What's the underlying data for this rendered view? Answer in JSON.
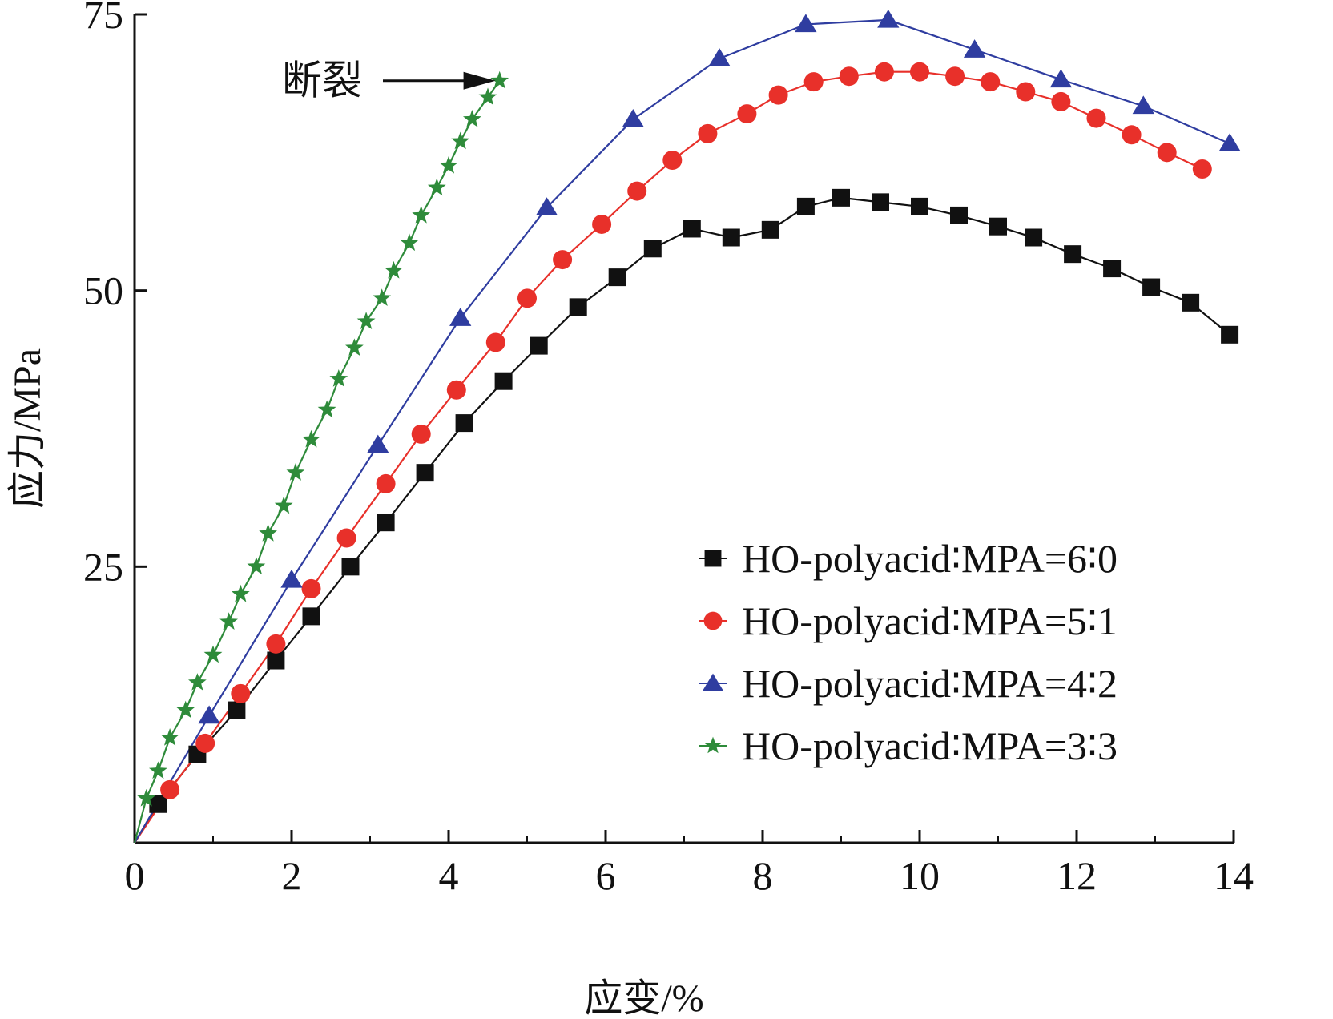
{
  "chart_data": {
    "type": "line",
    "title": "",
    "xlabel": "应变/%",
    "ylabel": "应力/MPa",
    "xlim": [
      0,
      14
    ],
    "ylim": [
      0,
      75
    ],
    "xticks": [
      0,
      2,
      4,
      6,
      8,
      10,
      12,
      14
    ],
    "yticks": [
      25,
      50,
      75
    ],
    "grid": false,
    "legend_position": "bottom-right",
    "annotation": {
      "text": "断裂",
      "points_to": {
        "x": 4.7,
        "y": 69
      }
    },
    "series": [
      {
        "name": "HO-polyacid∶MPA=6∶0",
        "marker": "square",
        "color": "#111111",
        "x": [
          0.3,
          0.8,
          1.3,
          1.8,
          2.25,
          2.75,
          3.2,
          3.7,
          4.2,
          4.7,
          5.15,
          5.65,
          6.15,
          6.6,
          7.1,
          7.6,
          8.1,
          8.55,
          9.0,
          9.5,
          10.0,
          10.5,
          11.0,
          11.45,
          11.95,
          12.45,
          12.95,
          13.45,
          13.95
        ],
        "y": [
          3.5,
          8,
          12,
          16.5,
          20.5,
          25,
          29,
          33.5,
          38,
          41.8,
          45,
          48.5,
          51.2,
          53.8,
          55.6,
          54.8,
          55.5,
          57.6,
          58.4,
          58.0,
          57.6,
          56.8,
          55.8,
          54.8,
          53.3,
          52.0,
          50.3,
          48.9,
          46.0
        ]
      },
      {
        "name": "HO-polyacid∶MPA=5∶1",
        "marker": "circle",
        "color": "#e8302a",
        "x": [
          0.45,
          0.9,
          1.35,
          1.8,
          2.25,
          2.7,
          3.2,
          3.65,
          4.1,
          4.6,
          5.0,
          5.45,
          5.95,
          6.4,
          6.85,
          7.3,
          7.8,
          8.2,
          8.65,
          9.1,
          9.55,
          10.0,
          10.45,
          10.9,
          11.35,
          11.8,
          12.25,
          12.7,
          13.15,
          13.6
        ],
        "y": [
          4.8,
          9,
          13.5,
          18,
          23,
          27.6,
          32.5,
          37,
          41,
          45.3,
          49.3,
          52.8,
          56,
          59,
          61.8,
          64.2,
          66,
          67.7,
          68.9,
          69.4,
          69.8,
          69.8,
          69.4,
          68.9,
          68.0,
          67.1,
          65.6,
          64.1,
          62.5,
          61.0
        ]
      },
      {
        "name": "HO-polyacid∶MPA=4∶2",
        "marker": "triangle",
        "color": "#2f3da0",
        "x": [
          0.95,
          2.0,
          3.1,
          4.15,
          5.25,
          6.35,
          7.45,
          8.55,
          9.6,
          10.7,
          11.8,
          12.85,
          13.95
        ],
        "y": [
          11.5,
          23.8,
          36,
          47.5,
          57.5,
          65.5,
          71.0,
          74.1,
          74.5,
          71.8,
          69.1,
          66.7,
          63.3
        ]
      },
      {
        "name": "HO-polyacid∶MPA=3∶3",
        "marker": "star",
        "color": "#2e8b3a",
        "x": [
          0.15,
          0.3,
          0.45,
          0.65,
          0.8,
          1.0,
          1.2,
          1.35,
          1.55,
          1.7,
          1.9,
          2.05,
          2.25,
          2.45,
          2.6,
          2.8,
          2.95,
          3.15,
          3.3,
          3.5,
          3.65,
          3.85,
          4.0,
          4.15,
          4.3,
          4.5,
          4.65
        ],
        "y": [
          4.0,
          6.5,
          9.5,
          12,
          14.5,
          17,
          20,
          22.5,
          25,
          28,
          30.5,
          33.5,
          36.5,
          39.2,
          42,
          44.8,
          47.2,
          49.3,
          51.8,
          54.3,
          56.8,
          59.3,
          61.3,
          63.5,
          65.5,
          67.5,
          69.0
        ]
      }
    ]
  }
}
